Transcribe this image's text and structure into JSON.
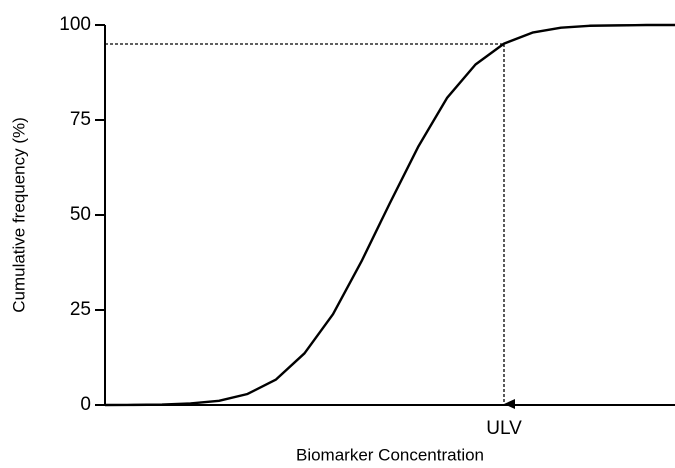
{
  "chart_data": {
    "type": "line",
    "x_label": "Biomarker Concentration",
    "y_label": "Cumulative frequency (%)",
    "x": [
      0,
      0.5,
      1,
      1.5,
      2,
      2.5,
      3,
      3.5,
      4,
      4.5,
      5,
      5.5,
      6,
      6.5,
      7,
      7.5,
      8,
      8.5,
      9,
      9.5,
      10
    ],
    "series": [
      {
        "color": "#000000",
        "values": [
          0,
          0.03,
          0.1,
          0.4,
          1.1,
          2.9,
          6.7,
          13.6,
          23.9,
          37.8,
          53.2,
          68.1,
          80.8,
          89.6,
          95.1,
          98.0,
          99.3,
          99.8,
          99.9,
          100,
          100
        ]
      }
    ],
    "xlim": [
      0,
      10
    ],
    "ylim": [
      0,
      100
    ],
    "yticks": [
      0,
      25,
      50,
      75,
      100
    ],
    "annotation": {
      "label": "ULV",
      "x": 7,
      "y": 95
    }
  }
}
